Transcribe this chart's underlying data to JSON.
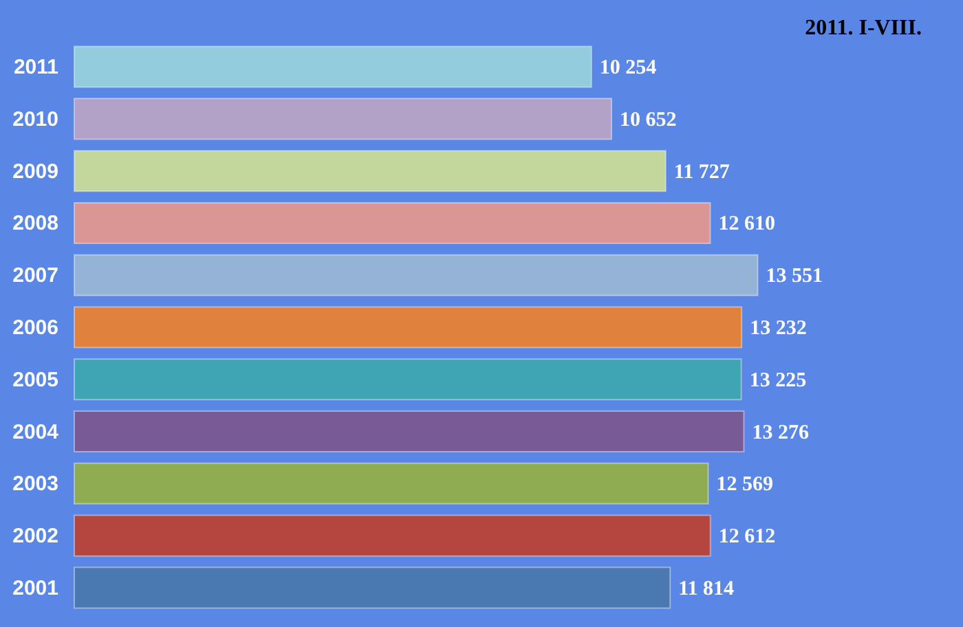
{
  "chart_data": {
    "type": "bar",
    "orientation": "horizontal",
    "title": "2011. I-VIII.",
    "categories": [
      "2011",
      "2010",
      "2009",
      "2008",
      "2007",
      "2006",
      "2005",
      "2004",
      "2003",
      "2002",
      "2001"
    ],
    "values": [
      10254,
      10652,
      11727,
      12610,
      13551,
      13232,
      13225,
      13276,
      12569,
      12612,
      11814
    ],
    "value_labels": [
      "10 254",
      "10 652",
      "11 727",
      "12 610",
      "13 551",
      "13 232",
      "13 225",
      "13 276",
      "12 569",
      "12 612",
      "11 814"
    ],
    "colors": [
      "#93cddd",
      "#b3a2c7",
      "#c3d69b",
      "#d99694",
      "#95b3d7",
      "#e0823d",
      "#3fa5b5",
      "#775a96",
      "#8fac52",
      "#b5463f",
      "#4a78b0"
    ],
    "tick_labels": "y"
  }
}
